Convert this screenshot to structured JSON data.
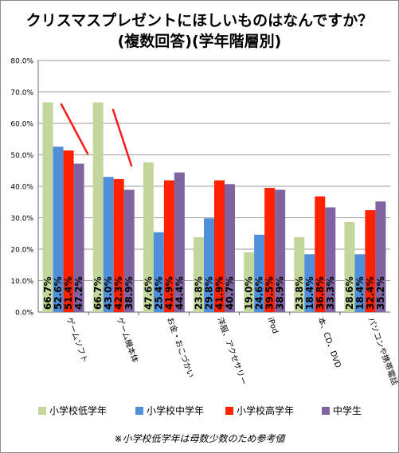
{
  "chart_data": {
    "type": "bar",
    "title": "クリスマスプレゼントにほしいものはなんですか？",
    "subtitle": "(複数回答)(学年階層別)",
    "categories": [
      "ゲームソフト",
      "ゲーム機本体",
      "お金・おこづかい",
      "洋服、アクセサリー",
      "iPod",
      "本、CD、DVD",
      "パソコンや携帯電話"
    ],
    "series": [
      {
        "name": "小学校低学年",
        "color": "#c3d69b",
        "values": [
          66.7,
          66.7,
          47.6,
          23.8,
          19.0,
          23.8,
          28.6
        ]
      },
      {
        "name": "小学校中学年",
        "color": "#4f8fd9",
        "values": [
          52.6,
          43.0,
          25.4,
          29.8,
          24.6,
          18.4,
          18.4
        ]
      },
      {
        "name": "小学校高学年",
        "color": "#ff2200",
        "values": [
          51.4,
          42.3,
          41.9,
          41.9,
          39.5,
          36.8,
          32.4
        ]
      },
      {
        "name": "中学生",
        "color": "#8064a2",
        "values": [
          47.2,
          38.9,
          44.4,
          40.7,
          38.9,
          33.3,
          35.2
        ]
      }
    ],
    "y_ticks": [
      "0.0%",
      "10.0%",
      "20.0%",
      "30.0%",
      "40.0%",
      "50.0%",
      "60.0%",
      "70.0%",
      "80.0%"
    ],
    "ylim": [
      0,
      80
    ],
    "legend_position": "bottom",
    "grid": true
  },
  "note": "※小学校低学年は母数少数のため参考値"
}
